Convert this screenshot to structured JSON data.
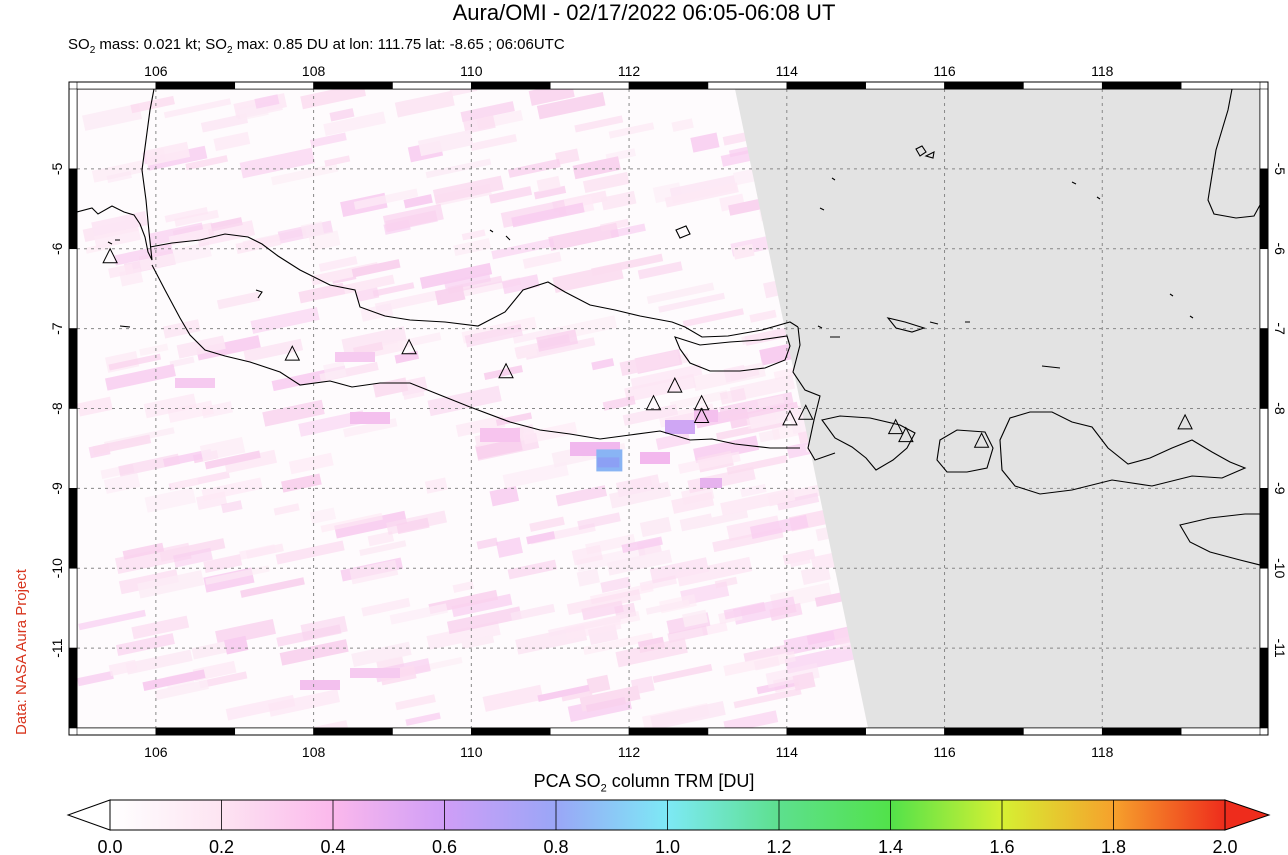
{
  "title": "Aura/OMI - 02/17/2022 06:05-06:08 UT",
  "subtitle": {
    "p1": "SO",
    "sub1": "2",
    "p2": " mass: 0.021 kt; SO",
    "sub2": "2",
    "p3": " max: 0.85 DU at lon: 111.75 lat: -8.65 ; 06:06UTC"
  },
  "credit": "Data: NASA Aura Project",
  "colorbar": {
    "title_a": "PCA SO",
    "title_sub": "2",
    "title_b": " column TRM [DU]",
    "ticks": [
      "0.0",
      "0.2",
      "0.4",
      "0.6",
      "0.8",
      "1.0",
      "1.2",
      "1.4",
      "1.6",
      "1.8",
      "2.0"
    ],
    "range": [
      0.0,
      2.0
    ],
    "colors": [
      "#ffffff",
      "#fde4f2",
      "#fbb8ec",
      "#cf9ef7",
      "#9aa6f7",
      "#7de9f5",
      "#5de08e",
      "#52e24a",
      "#d6f032",
      "#f6a12c",
      "#ee2c1c"
    ]
  },
  "map": {
    "lon_range": [
      105.0,
      120.0
    ],
    "lat_range": [
      -12.0,
      -4.0
    ],
    "lon_ticks": [
      "106",
      "108",
      "110",
      "112",
      "114",
      "116",
      "118"
    ],
    "lat_ticks": [
      "-5",
      "-6",
      "-7",
      "-8",
      "-9",
      "-10",
      "-11"
    ],
    "no_data_color": "#e3e3e3",
    "volcanoes": [
      {
        "lon": 105.42,
        "lat": -6.1
      },
      {
        "lon": 107.73,
        "lat": -7.32
      },
      {
        "lon": 109.21,
        "lat": -7.24
      },
      {
        "lon": 110.44,
        "lat": -7.54
      },
      {
        "lon": 112.31,
        "lat": -7.94
      },
      {
        "lon": 112.58,
        "lat": -7.72
      },
      {
        "lon": 112.92,
        "lat": -7.94
      },
      {
        "lon": 112.92,
        "lat": -8.1
      },
      {
        "lon": 114.04,
        "lat": -8.13
      },
      {
        "lon": 114.24,
        "lat": -8.06
      },
      {
        "lon": 115.38,
        "lat": -8.24
      },
      {
        "lon": 115.51,
        "lat": -8.34
      },
      {
        "lon": 116.47,
        "lat": -8.41
      },
      {
        "lon": 119.05,
        "lat": -8.18
      }
    ],
    "so2_max": {
      "lon": 111.75,
      "lat": -8.65,
      "value": 0.85
    }
  }
}
